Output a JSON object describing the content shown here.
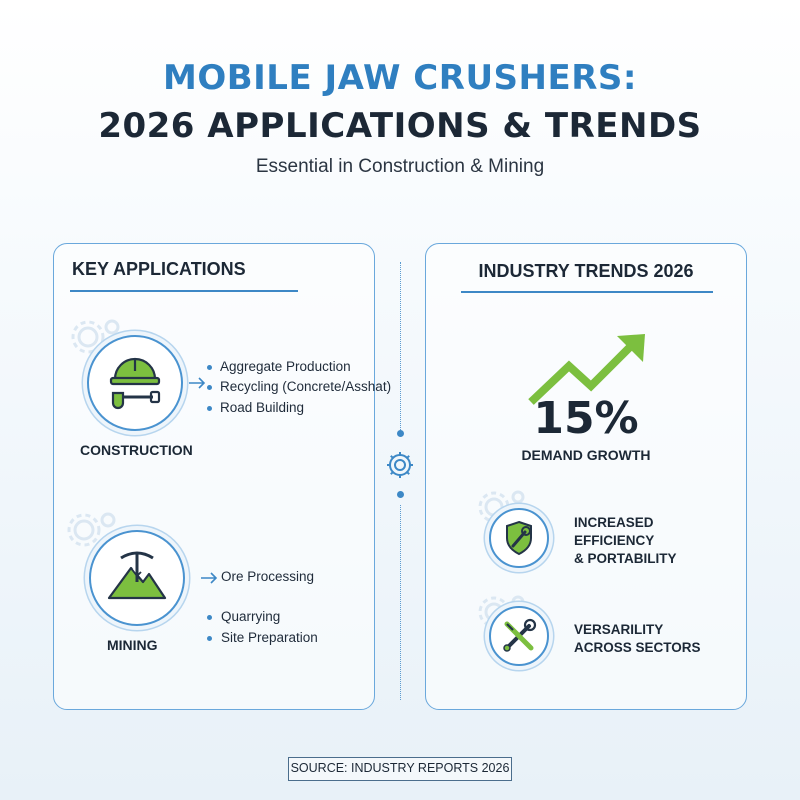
{
  "header": {
    "title_line1": "MOBILE JAW CRUSHERS:",
    "title_line2": "2026 APPLICATIONS & TRENDS",
    "subtitle": "Essential in Construction & Mining"
  },
  "applications": {
    "heading": "KEY APPLICATIONS",
    "categories": [
      {
        "label": "CONSTRUCTION",
        "icon": "hardhat-shovel-icon",
        "items": [
          "Aggregate Production",
          "Recycling (Concrete/Asshat)",
          "Road Building"
        ]
      },
      {
        "label": "MINING",
        "icon": "pickaxe-mountain-icon",
        "items": [
          "Ore Processing",
          "Quarrying",
          "Site Preparation"
        ]
      }
    ]
  },
  "trends": {
    "heading": "INDUSTRY TRENDS 2026",
    "growth_value": "15%",
    "growth_label": "DEMAND GROWTH",
    "items": [
      {
        "icon": "shield-wrench-icon",
        "lines": [
          "INCREASED",
          "EFFICIENCY",
          "& PORTABILITY"
        ]
      },
      {
        "icon": "wrench-screwdriver-icon",
        "lines": [
          "VERSARILITY",
          "ACROSS SECTORS"
        ]
      }
    ]
  },
  "footer": {
    "source": "SOURCE: INDUSTRY REPORTS 2026"
  },
  "colors": {
    "accent_blue": "#2f7fc0",
    "dark_text": "#1c2836",
    "green": "#7cbf3f"
  }
}
